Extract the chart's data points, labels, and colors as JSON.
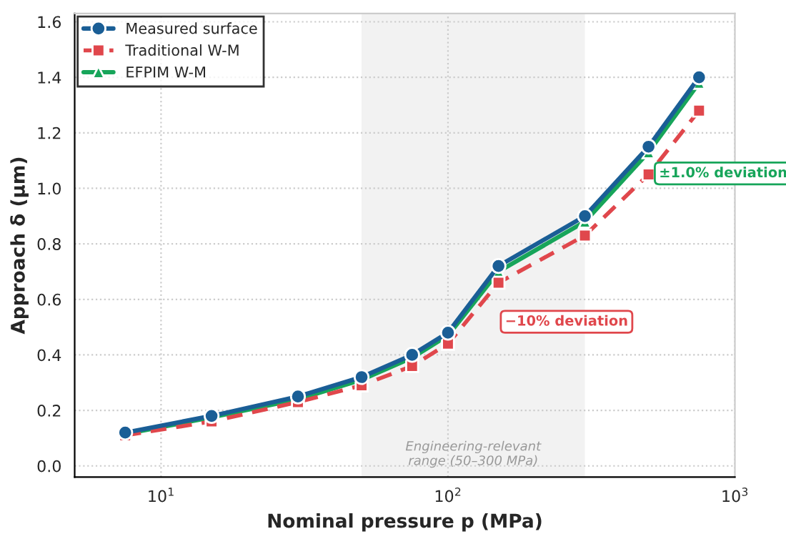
{
  "chart_data": {
    "type": "line",
    "xlabel": "Nominal pressure p (MPa)",
    "ylabel": "Approach δ (μm)",
    "x": [
      7.5,
      15,
      30,
      50,
      75,
      100,
      150,
      300,
      500,
      750
    ],
    "series": [
      {
        "name": "Measured surface",
        "color": "#1a5e96",
        "marker": "circle",
        "line_style": "solid",
        "values": [
          0.12,
          0.18,
          0.25,
          0.32,
          0.4,
          0.48,
          0.72,
          0.9,
          1.15,
          1.4
        ]
      },
      {
        "name": "Traditional W-M",
        "color": "#e0474c",
        "marker": "square",
        "line_style": "dashed",
        "values": [
          0.11,
          0.16,
          0.23,
          0.29,
          0.36,
          0.44,
          0.66,
          0.83,
          1.05,
          1.28
        ]
      },
      {
        "name": "EFPIM W-M",
        "color": "#17a55a",
        "marker": "triangle",
        "line_style": "solid",
        "values": [
          0.115,
          0.175,
          0.24,
          0.31,
          0.39,
          0.47,
          0.7,
          0.88,
          1.13,
          1.38
        ]
      }
    ],
    "log": "x",
    "xlim": [
      5,
      1000
    ],
    "xticks": [
      {
        "value": 10,
        "label": "10$^{1}$"
      },
      {
        "value": 100,
        "label": "10$^{2}$"
      },
      {
        "value": 1000,
        "label": "10$^{3}$"
      }
    ],
    "ylim": [
      -0.04,
      1.63
    ],
    "yticks": [
      {
        "value": 0,
        "label": "0.0"
      },
      0.2,
      0.4,
      0.6,
      0.8,
      {
        "value": 1,
        "label": "1.0"
      },
      1.2,
      1.4,
      1.6
    ],
    "bands": [
      {
        "axis": "x",
        "from": 50,
        "to": 300,
        "label": "Engineering-relevant\nrange (50–300 MPa)",
        "color": "#f2f2f2"
      }
    ],
    "annotations": [
      "±1.0% deviation",
      "−10% deviation"
    ],
    "grid": true,
    "legend": "top left"
  }
}
